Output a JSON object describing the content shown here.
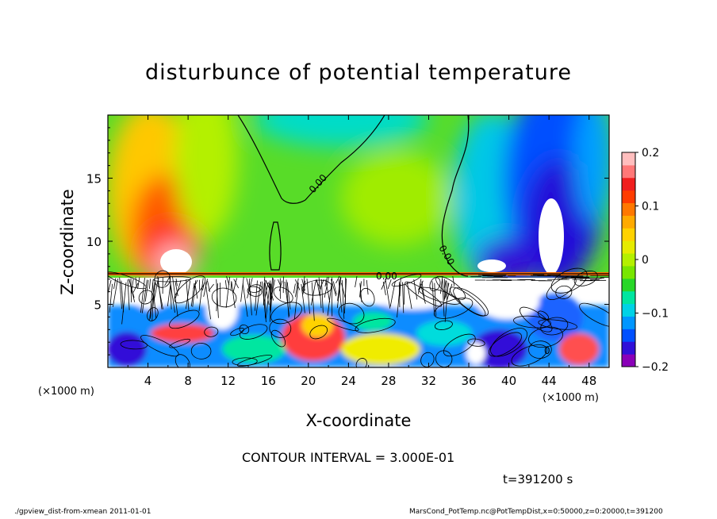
{
  "title": "disturbunce of potential temperature",
  "contour_note": "CONTOUR INTERVAL = 3.000E-01",
  "time_label": "t=391200 s",
  "footer_left": "./gpview_dist-from-xmean  2011-01-01",
  "footer_right": "MarsCond_PotTemp.nc@PotTempDist,x=0:50000,z=0:20000,t=391200",
  "chart_data": {
    "type": "heatmap",
    "title": "disturbunce of potential temperature",
    "xlabel": "X-coordinate",
    "ylabel": "Z-coordinate",
    "x_units": "(×1000 m)",
    "y_units": "(×1000 m)",
    "xlim": [
      0,
      50
    ],
    "ylim": [
      0,
      20
    ],
    "x_ticks": [
      4,
      8,
      12,
      16,
      20,
      24,
      28,
      32,
      36,
      40,
      44,
      48
    ],
    "y_ticks": [
      5,
      10,
      15
    ],
    "colorbar": {
      "min": -0.2,
      "max": 0.2,
      "ticks": [
        0.2,
        0.1,
        0,
        -0.1,
        -0.2
      ],
      "tick_labels": [
        "0.2",
        "0.1",
        "0",
        "−0.1",
        "−0.2"
      ],
      "colors": [
        "#8a00b8",
        "#3010d8",
        "#0050ff",
        "#0096ff",
        "#00d2e6",
        "#00e6a0",
        "#28d728",
        "#78e600",
        "#b4f000",
        "#e6eb00",
        "#ffd200",
        "#ffaa00",
        "#ff7800",
        "#ff3c00",
        "#f01e1e",
        "#ff7878",
        "#ffbebe"
      ]
    },
    "contour_labels": [
      "0.00",
      "0.00",
      "0",
      "0.00",
      "0"
    ],
    "contour_interval": 0.3,
    "time": "t=391200 s"
  }
}
